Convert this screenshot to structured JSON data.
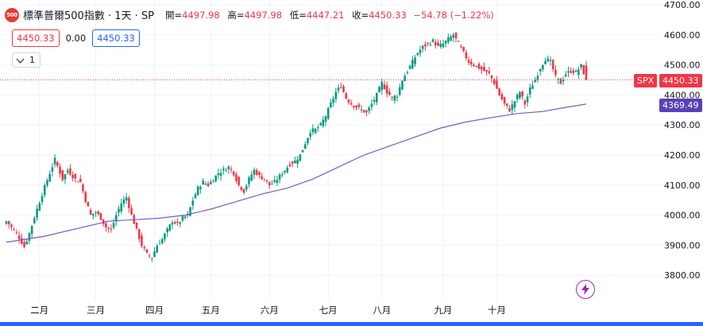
{
  "legend": {
    "logo_text": "500",
    "title": "標準普爾500指數 · 1天 · SP",
    "open_label": "開=",
    "open": "4497.98",
    "high_label": "高=",
    "high": "4497.98",
    "low_label": "低=",
    "low": "4447.21",
    "close_label": "收=",
    "close": "4450.33",
    "change": "−54.78 (−1.22%)"
  },
  "price_boxes": {
    "bid": "4450.33",
    "spread": "0.00",
    "ask": "4450.33"
  },
  "collapse": {
    "count": "1"
  },
  "tags": {
    "symbol": "SPX",
    "last_price": "4450.33",
    "ma_value": "4369.49"
  },
  "colors": {
    "up": "#089981",
    "down": "#f23645",
    "ma": "#7e57c2",
    "accent": "#2962ff"
  },
  "icons": {
    "bolt": "lightning-icon",
    "chevron": "chevron-down-icon"
  },
  "chart_data": {
    "type": "candlestick",
    "y_ticks": [
      "4700.00",
      "4600.00",
      "4500.00",
      "4400.00",
      "4300.00",
      "4200.00",
      "4100.00",
      "4000.00",
      "3900.00",
      "3800.00"
    ],
    "y_range": [
      3770,
      4710
    ],
    "x_labels": [
      "二月",
      "三月",
      "四月",
      "五月",
      "六月",
      "七月",
      "八月",
      "九月",
      "十月"
    ],
    "last_close": 4450.33,
    "moving_average_last": 4369.49,
    "close_path": [
      [
        0,
        3980
      ],
      [
        4,
        3940
      ],
      [
        7,
        3895
      ],
      [
        9,
        3940
      ],
      [
        12,
        4020
      ],
      [
        14,
        4070
      ],
      [
        17,
        4140
      ],
      [
        19,
        4185
      ],
      [
        22,
        4120
      ],
      [
        24,
        4150
      ],
      [
        27,
        4120
      ],
      [
        29,
        4110
      ],
      [
        31,
        4050
      ],
      [
        33,
        4000
      ],
      [
        35,
        4010
      ],
      [
        37,
        3990
      ],
      [
        39,
        3960
      ],
      [
        41,
        3950
      ],
      [
        43,
        4000
      ],
      [
        45,
        4040
      ],
      [
        47,
        4060
      ],
      [
        49,
        4000
      ],
      [
        51,
        3950
      ],
      [
        53,
        3900
      ],
      [
        55,
        3870
      ],
      [
        57,
        3860
      ],
      [
        59,
        3900
      ],
      [
        61,
        3920
      ],
      [
        63,
        3950
      ],
      [
        65,
        3980
      ],
      [
        67,
        3970
      ],
      [
        69,
        3990
      ],
      [
        71,
        4000
      ],
      [
        73,
        4050
      ],
      [
        75,
        4090
      ],
      [
        77,
        4110
      ],
      [
        79,
        4100
      ],
      [
        81,
        4120
      ],
      [
        83,
        4140
      ],
      [
        85,
        4150
      ],
      [
        87,
        4160
      ],
      [
        89,
        4140
      ],
      [
        91,
        4100
      ],
      [
        93,
        4080
      ],
      [
        95,
        4120
      ],
      [
        97,
        4150
      ],
      [
        99,
        4130
      ],
      [
        101,
        4120
      ],
      [
        103,
        4100
      ],
      [
        105,
        4110
      ],
      [
        107,
        4130
      ],
      [
        109,
        4150
      ],
      [
        111,
        4170
      ],
      [
        113,
        4180
      ],
      [
        115,
        4200
      ],
      [
        117,
        4240
      ],
      [
        119,
        4280
      ],
      [
        121,
        4285
      ],
      [
        123,
        4300
      ],
      [
        125,
        4330
      ],
      [
        127,
        4370
      ],
      [
        129,
        4410
      ],
      [
        131,
        4430
      ],
      [
        133,
        4390
      ],
      [
        135,
        4370
      ],
      [
        137,
        4360
      ],
      [
        139,
        4350
      ],
      [
        141,
        4340
      ],
      [
        143,
        4370
      ],
      [
        145,
        4400
      ],
      [
        147,
        4440
      ],
      [
        149,
        4410
      ],
      [
        151,
        4390
      ],
      [
        153,
        4400
      ],
      [
        155,
        4450
      ],
      [
        157,
        4480
      ],
      [
        159,
        4510
      ],
      [
        161,
        4540
      ],
      [
        163,
        4560
      ],
      [
        165,
        4570
      ],
      [
        167,
        4580
      ],
      [
        169,
        4560
      ],
      [
        171,
        4570
      ],
      [
        173,
        4585
      ],
      [
        175,
        4600
      ],
      [
        177,
        4570
      ],
      [
        179,
        4540
      ],
      [
        181,
        4510
      ],
      [
        183,
        4500
      ],
      [
        185,
        4490
      ],
      [
        187,
        4480
      ],
      [
        189,
        4470
      ],
      [
        191,
        4440
      ],
      [
        193,
        4400
      ],
      [
        195,
        4370
      ],
      [
        197,
        4350
      ],
      [
        199,
        4380
      ],
      [
        201,
        4410
      ],
      [
        203,
        4370
      ],
      [
        205,
        4420
      ],
      [
        207,
        4450
      ],
      [
        209,
        4490
      ],
      [
        211,
        4520
      ],
      [
        213,
        4510
      ],
      [
        215,
        4460
      ],
      [
        217,
        4440
      ],
      [
        219,
        4470
      ],
      [
        221,
        4480
      ],
      [
        223,
        4475
      ],
      [
        225,
        4497
      ],
      [
        227,
        4450
      ]
    ],
    "moving_average_path": [
      [
        0,
        3910
      ],
      [
        15,
        3930
      ],
      [
        30,
        3960
      ],
      [
        40,
        3980
      ],
      [
        50,
        3985
      ],
      [
        60,
        3990
      ],
      [
        70,
        4000
      ],
      [
        80,
        4020
      ],
      [
        90,
        4045
      ],
      [
        100,
        4070
      ],
      [
        110,
        4090
      ],
      [
        120,
        4120
      ],
      [
        130,
        4160
      ],
      [
        140,
        4200
      ],
      [
        150,
        4230
      ],
      [
        160,
        4260
      ],
      [
        170,
        4290
      ],
      [
        180,
        4310
      ],
      [
        190,
        4325
      ],
      [
        200,
        4338
      ],
      [
        210,
        4345
      ],
      [
        220,
        4360
      ],
      [
        227,
        4369.49
      ]
    ]
  }
}
